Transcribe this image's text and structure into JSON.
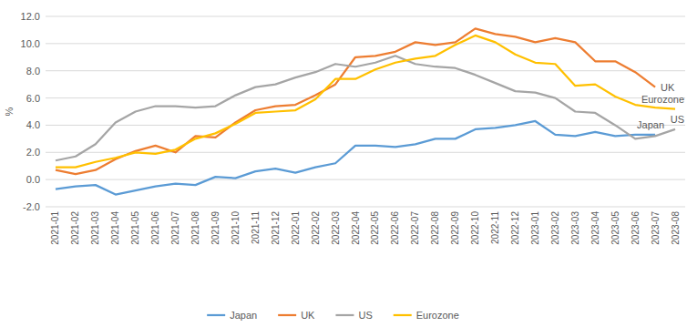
{
  "chart_data": {
    "type": "line",
    "y_label": "%",
    "categories": [
      "2021-01",
      "2021-02",
      "2021-03",
      "2021-04",
      "2021-05",
      "2021-06",
      "2021-07",
      "2021-08",
      "2021-09",
      "2021-10",
      "2021-11",
      "2021-12",
      "2022-01",
      "2022-02",
      "2022-03",
      "2022-04",
      "2022-05",
      "2022-06",
      "2022-07",
      "2022-08",
      "2022-09",
      "2022-10",
      "2022-11",
      "2022-12",
      "2023-01",
      "2023-02",
      "2023-03",
      "2023-04",
      "2023-05",
      "2023-06",
      "2023-07",
      "2023-08"
    ],
    "series": [
      {
        "name": "Japan",
        "color": "#5b9bd5",
        "values": [
          -0.7,
          -0.5,
          -0.4,
          -1.1,
          -0.8,
          -0.5,
          -0.3,
          -0.4,
          0.2,
          0.1,
          0.6,
          0.8,
          0.5,
          0.9,
          1.2,
          2.5,
          2.5,
          2.4,
          2.6,
          3.0,
          3.0,
          3.7,
          3.8,
          4.0,
          4.3,
          3.3,
          3.2,
          3.5,
          3.2,
          3.3,
          3.3,
          null
        ]
      },
      {
        "name": "UK",
        "color": "#ed7d31",
        "values": [
          0.7,
          0.4,
          0.7,
          1.5,
          2.1,
          2.5,
          2.0,
          3.2,
          3.1,
          4.2,
          5.1,
          5.4,
          5.5,
          6.2,
          7.0,
          9.0,
          9.1,
          9.4,
          10.1,
          9.9,
          10.1,
          11.1,
          10.7,
          10.5,
          10.1,
          10.4,
          10.1,
          8.7,
          8.7,
          7.9,
          6.8,
          null
        ]
      },
      {
        "name": "US",
        "color": "#a5a5a5",
        "values": [
          1.4,
          1.7,
          2.6,
          4.2,
          5.0,
          5.4,
          5.4,
          5.3,
          5.4,
          6.2,
          6.8,
          7.0,
          7.5,
          7.9,
          8.5,
          8.3,
          8.6,
          9.1,
          8.5,
          8.3,
          8.2,
          7.7,
          7.1,
          6.5,
          6.4,
          6.0,
          5.0,
          4.9,
          4.0,
          3.0,
          3.2,
          3.7
        ]
      },
      {
        "name": "Eurozone",
        "color": "#ffc000",
        "values": [
          0.9,
          0.9,
          1.3,
          1.6,
          2.0,
          1.9,
          2.2,
          3.0,
          3.4,
          4.1,
          4.9,
          5.0,
          5.1,
          5.9,
          7.4,
          7.4,
          8.1,
          8.6,
          8.9,
          9.1,
          9.9,
          10.6,
          10.1,
          9.2,
          8.6,
          8.5,
          6.9,
          7.0,
          6.1,
          5.5,
          5.3,
          5.2
        ]
      }
    ],
    "ylim": [
      -2,
      12
    ],
    "yticks": [
      {
        "value": -2,
        "label": "-2.0"
      },
      {
        "value": 0,
        "label": "0.0"
      },
      {
        "value": 2,
        "label": "2.0"
      },
      {
        "value": 4,
        "label": "4.0"
      },
      {
        "value": 6,
        "label": "6.0"
      },
      {
        "value": 8,
        "label": "8.0"
      },
      {
        "value": 10,
        "label": "10.0"
      },
      {
        "value": 12,
        "label": "12.0"
      }
    ],
    "grid": true,
    "legend": "bottom"
  }
}
